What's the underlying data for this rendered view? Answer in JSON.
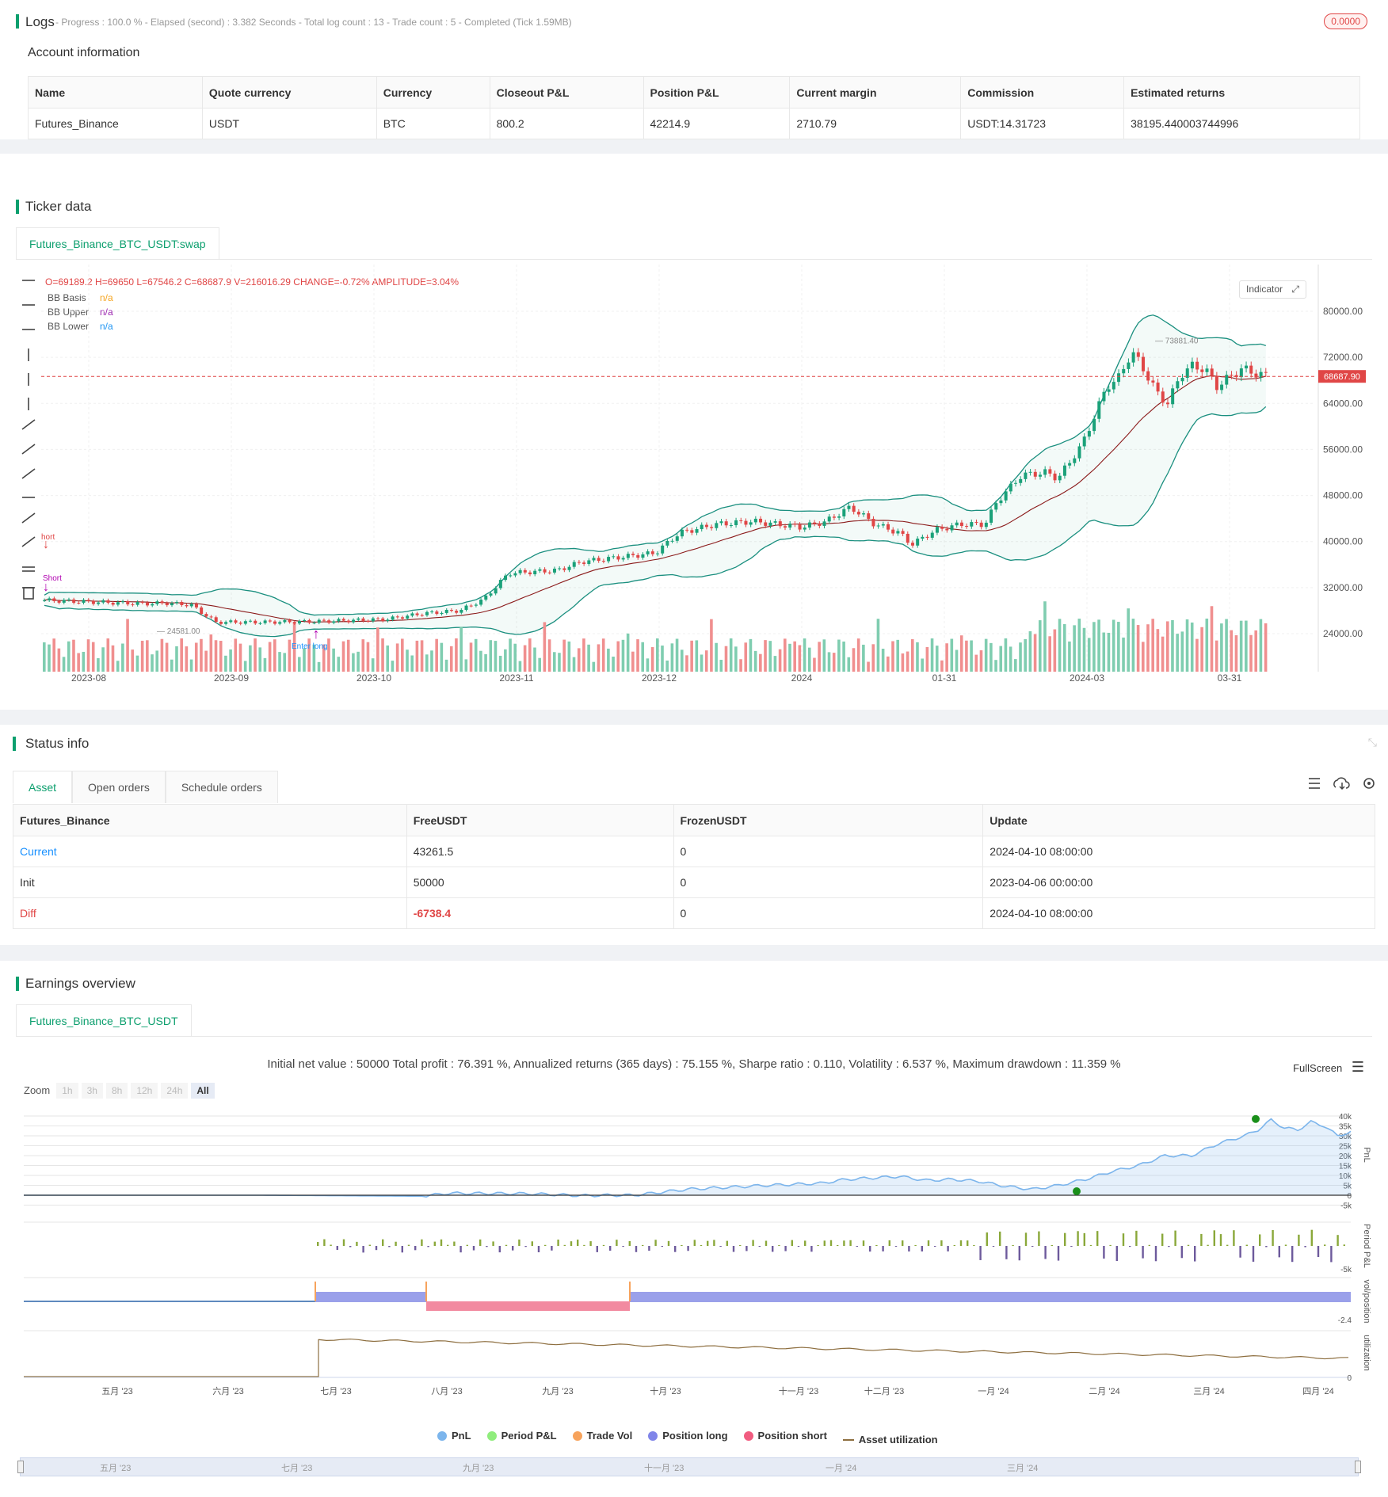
{
  "logs": {
    "title": "Logs",
    "summary": "- Progress : 100.0 % - Elapsed (second) : 3.382 Seconds - Total log count : 13 - Trade count : 5 - Completed (Tick 1.59MB)",
    "badge": "0.0000"
  },
  "account": {
    "title": "Account information",
    "headers": [
      "Name",
      "Quote currency",
      "Currency",
      "Closeout P&L",
      "Position P&L",
      "Current margin",
      "Commission",
      "Estimated returns"
    ],
    "row": [
      "Futures_Binance",
      "USDT",
      "BTC",
      "800.2",
      "42214.9",
      "2710.79",
      "USDT:14.31723",
      "38195.440003744996"
    ]
  },
  "ticker": {
    "title": "Ticker data",
    "tab": "Futures_Binance_BTC_USDT:swap",
    "ohlc": "O=69189.2 H=69650 L=67546.2 C=68687.9 V=216016.29 CHANGE=-0.72% AMPLITUDE=3.04%",
    "legend": [
      {
        "label": "BB Basis",
        "value": "n/a",
        "color": "#f5a623"
      },
      {
        "label": "BB Upper",
        "value": "n/a",
        "color": "#9c27b0"
      },
      {
        "label": "BB Lower",
        "value": "n/a",
        "color": "#2196f3"
      }
    ],
    "indicator_btn": "Indicator",
    "price_tag": "68687.90",
    "y_ticks": [
      "80000.00",
      "72000.00",
      "64000.00",
      "56000.00",
      "48000.00",
      "40000.00",
      "32000.00",
      "24000.00"
    ],
    "x_ticks": [
      "2023-08",
      "2023-09",
      "2023-10",
      "2023-11",
      "2023-12",
      "2024",
      "01-31",
      "2024-03",
      "03-31"
    ],
    "high_label": "73881.40",
    "low_label": "24581.00",
    "signal_labels": [
      "hort",
      "Short",
      "Enter long"
    ]
  },
  "status": {
    "title": "Status info",
    "tabs": [
      "Asset",
      "Open orders",
      "Schedule orders"
    ],
    "headers": [
      "Futures_Binance",
      "FreeUSDT",
      "FrozenUSDT",
      "Update"
    ],
    "rows": [
      [
        "Current",
        "43261.5",
        "0",
        "2024-04-10 08:00:00"
      ],
      [
        "Init",
        "50000",
        "0",
        "2023-04-06 00:00:00"
      ],
      [
        "Diff",
        "-6738.4",
        "0",
        "2024-04-10 08:00:00"
      ]
    ]
  },
  "earnings": {
    "title": "Earnings overview",
    "tab": "Futures_Binance_BTC_USDT",
    "summary": "Initial net value : 50000 Total profit : 76.391 %, Annualized returns (365 days) : 75.155 %, Sharpe ratio : 0.110, Volatility : 6.537 %, Maximum drawdown : 11.359 %",
    "fullscreen": "FullScreen",
    "zoom_label": "Zoom",
    "zoom_buttons": [
      "1h",
      "3h",
      "8h",
      "12h",
      "24h",
      "All"
    ],
    "pnl_ticks": [
      "40k",
      "35k",
      "30k",
      "25k",
      "20k",
      "15k",
      "10k",
      "5k",
      "0",
      "-5k"
    ],
    "period_tick": "-5k",
    "vol_tick": "-2.4",
    "util_tick": "0",
    "axis_titles": [
      "PnL",
      "Period P&L",
      "vol/position",
      "utilization"
    ],
    "x_ticks": [
      "五月 '23",
      "六月 '23",
      "七月 '23",
      "八月 '23",
      "九月 '23",
      "十月 '23",
      "十一月 '23",
      "十二月 '23",
      "一月 '24",
      "二月 '24",
      "三月 '24",
      "四月 '24"
    ],
    "nav_ticks": [
      "五月 '23",
      "七月 '23",
      "九月 '23",
      "十一月 '23",
      "一月 '24",
      "三月 '24"
    ],
    "legend": [
      {
        "label": "PnL",
        "color": "#7cb5ec"
      },
      {
        "label": "Period P&L",
        "color": "#90ed7d"
      },
      {
        "label": "Trade Vol",
        "color": "#f7a35c"
      },
      {
        "label": "Position long",
        "color": "#8085e9"
      },
      {
        "label": "Position short",
        "color": "#f15c80"
      },
      {
        "label": "Asset utilization",
        "color": "#8d6e3f"
      }
    ]
  }
}
